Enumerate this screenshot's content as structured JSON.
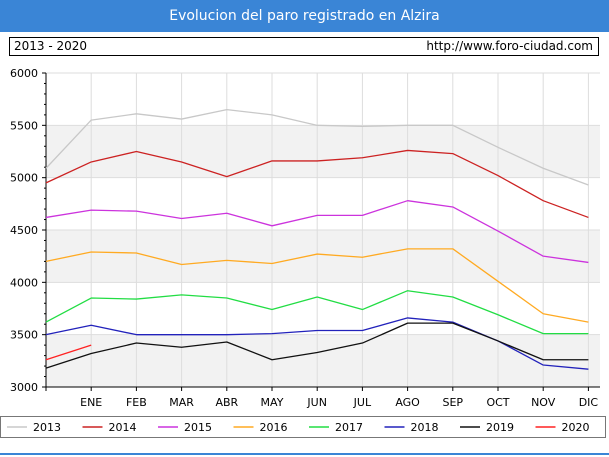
{
  "header": {
    "title": "Evolucion del paro registrado en Alzira"
  },
  "info": {
    "range": "2013 - 2020",
    "url": "http://www.foro-ciudad.com"
  },
  "chart_data": {
    "type": "line",
    "x_labels": [
      "ENE",
      "FEB",
      "MAR",
      "ABR",
      "MAY",
      "JUN",
      "JUL",
      "AGO",
      "SEP",
      "OCT",
      "NOV",
      "DIC"
    ],
    "y_ticks": [
      3000,
      3500,
      4000,
      4500,
      5000,
      5500,
      6000
    ],
    "ylim": [
      3000,
      6000
    ],
    "grid": true,
    "legend_position": "bottom",
    "series": [
      {
        "name": "2013",
        "color": "#c8c8c8",
        "values": [
          5090,
          5550,
          5610,
          5560,
          5650,
          5600,
          5500,
          5490,
          5500,
          5500,
          5290,
          5090,
          4930
        ]
      },
      {
        "name": "2014",
        "color": "#cc2222",
        "values": [
          4950,
          5150,
          5250,
          5150,
          5010,
          5160,
          5160,
          5190,
          5260,
          5230,
          5020,
          4780,
          4620
        ]
      },
      {
        "name": "2015",
        "color": "#cc33dd",
        "values": [
          4620,
          4690,
          4680,
          4610,
          4660,
          4540,
          4640,
          4640,
          4780,
          4720,
          4490,
          4250,
          4190
        ]
      },
      {
        "name": "2016",
        "color": "#ffaa22",
        "values": [
          4200,
          4290,
          4280,
          4170,
          4210,
          4180,
          4270,
          4240,
          4320,
          4320,
          4010,
          3700,
          3620
        ]
      },
      {
        "name": "2017",
        "color": "#22dd44",
        "values": [
          3620,
          3850,
          3840,
          3880,
          3850,
          3740,
          3860,
          3740,
          3920,
          3860,
          3690,
          3510,
          3510
        ]
      },
      {
        "name": "2018",
        "color": "#2222bb",
        "values": [
          3500,
          3590,
          3500,
          3500,
          3500,
          3510,
          3540,
          3540,
          3660,
          3620,
          3440,
          3210,
          3170
        ]
      },
      {
        "name": "2019",
        "color": "#111111",
        "values": [
          3180,
          3320,
          3420,
          3380,
          3430,
          3260,
          3330,
          3420,
          3610,
          3610,
          3440,
          3260,
          3260
        ]
      },
      {
        "name": "2020",
        "color": "#ff2222",
        "values": [
          3260,
          3400
        ]
      }
    ]
  }
}
